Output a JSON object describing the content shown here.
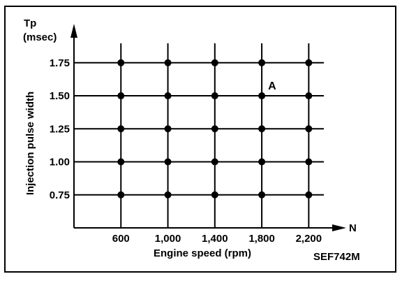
{
  "chart_data": {
    "type": "scatter",
    "title": "",
    "xlabel": "Engine speed (rpm)",
    "ylabel": "Injection pulse width",
    "y_axis_symbol": "Tp",
    "y_axis_unit": "(msec)",
    "x_axis_symbol": "N",
    "x": [
      600,
      1000,
      1400,
      1800,
      2200
    ],
    "x_tick_labels": [
      "600",
      "1,000",
      "1,400",
      "1,800",
      "2,200"
    ],
    "y": [
      0.75,
      1.0,
      1.25,
      1.5,
      1.75
    ],
    "y_tick_labels": [
      "0.75",
      "1.00",
      "1.25",
      "1.50",
      "1.75"
    ],
    "xlim": [
      200,
      2400
    ],
    "ylim": [
      0.5,
      1.95
    ],
    "grid": true,
    "series": [
      {
        "points": [
          [
            600,
            0.75
          ],
          [
            1000,
            0.75
          ],
          [
            1400,
            0.75
          ],
          [
            1800,
            0.75
          ],
          [
            2200,
            0.75
          ],
          [
            600,
            1.0
          ],
          [
            1000,
            1.0
          ],
          [
            1400,
            1.0
          ],
          [
            1800,
            1.0
          ],
          [
            2200,
            1.0
          ],
          [
            600,
            1.25
          ],
          [
            1000,
            1.25
          ],
          [
            1400,
            1.25
          ],
          [
            1800,
            1.25
          ],
          [
            2200,
            1.25
          ],
          [
            600,
            1.5
          ],
          [
            1000,
            1.5
          ],
          [
            1400,
            1.5
          ],
          [
            1800,
            1.5
          ],
          [
            2200,
            1.5
          ],
          [
            600,
            1.75
          ],
          [
            1000,
            1.75
          ],
          [
            1400,
            1.75
          ],
          [
            1800,
            1.75
          ],
          [
            2200,
            1.75
          ]
        ]
      }
    ],
    "annotations": [
      {
        "text": "A",
        "x": 1800,
        "y": 1.5
      }
    ],
    "figure_code": "SEF742M"
  }
}
